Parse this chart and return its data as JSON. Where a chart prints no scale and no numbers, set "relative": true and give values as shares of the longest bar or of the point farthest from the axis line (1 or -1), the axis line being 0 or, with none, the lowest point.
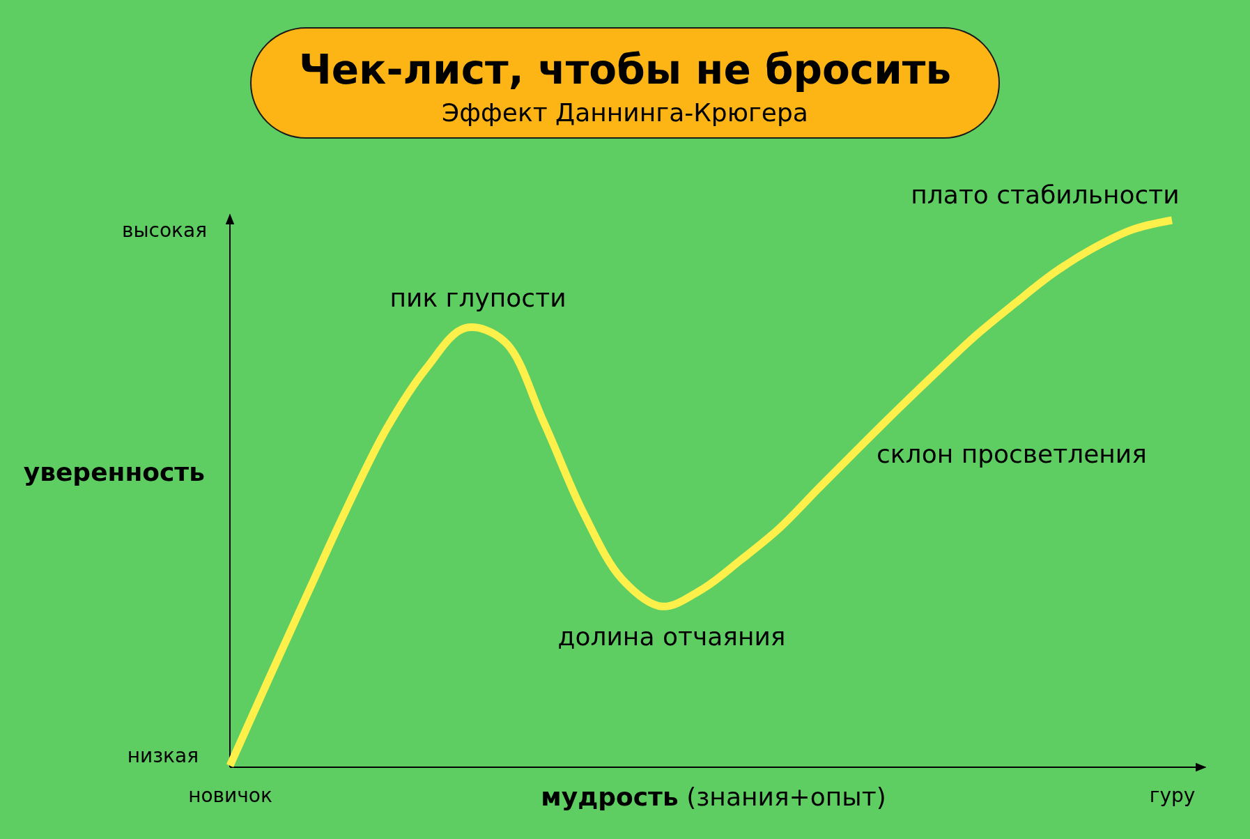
{
  "chart_data": {
    "type": "line",
    "title": "Чек-лист, чтобы не бросить",
    "subtitle": "Эффект Даннинга-Крюгера",
    "xlabel": "мудрость (знания+опыт)",
    "ylabel": "уверенность",
    "relative": true,
    "categories": [
      "новичок",
      null,
      null,
      null,
      null,
      null,
      null,
      null,
      null,
      null,
      null,
      null,
      null,
      null,
      null,
      null,
      null,
      null,
      null,
      null,
      null,
      null,
      null,
      null,
      "гуру"
    ],
    "series": [
      {
        "color": "#fdf04a",
        "values": [
          0.003,
          0.163,
          0.321,
          0.477,
          0.62,
          0.729,
          0.803,
          0.778,
          0.63,
          0.466,
          0.343,
          0.294,
          0.324,
          0.378,
          0.437,
          0.51,
          0.582,
          0.653,
          0.722,
          0.789,
          0.848,
          0.904,
          0.949,
          0.983,
          1.0
        ]
      }
    ],
    "annotations": [
      "высокая",
      "низкая",
      "пик глупости",
      "долина отчаяния",
      "склон просветления",
      "плато стабильности"
    ],
    "marker": "none",
    "line_style": "solid"
  }
}
